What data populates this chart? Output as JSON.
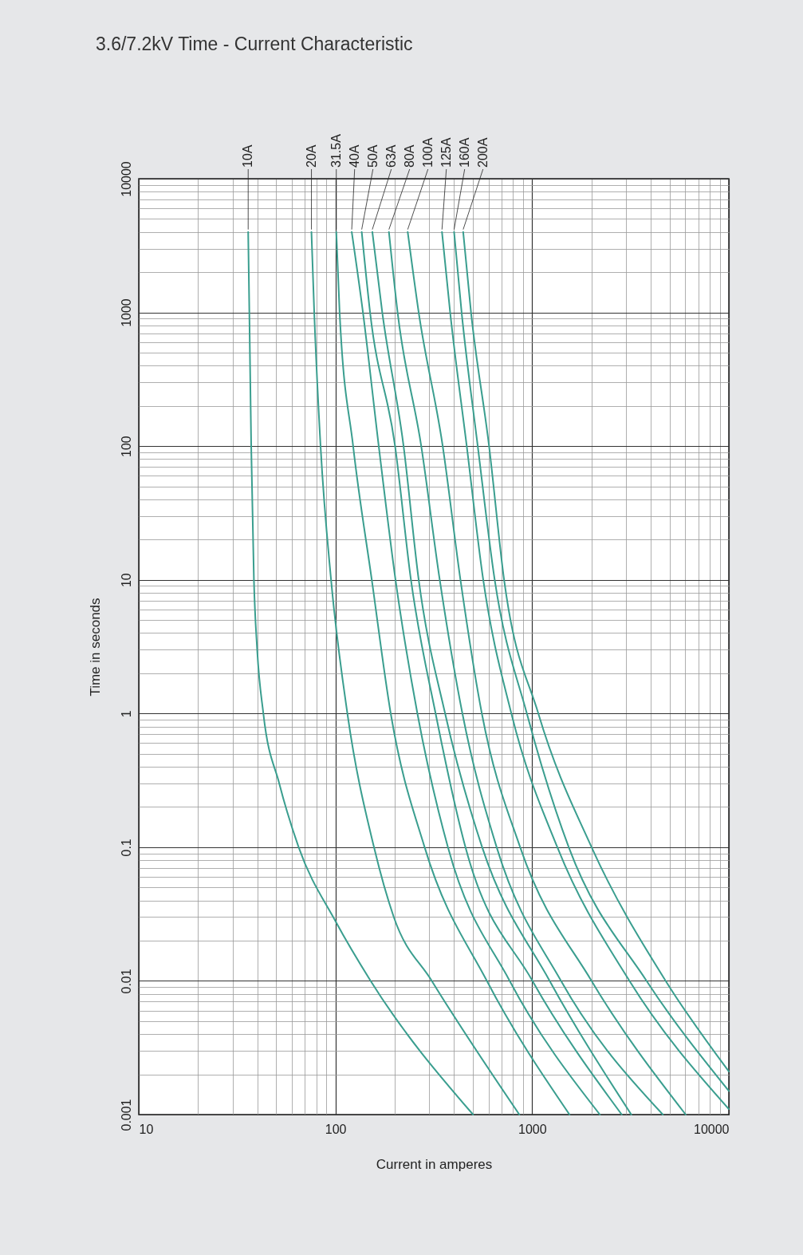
{
  "chart_data": {
    "type": "line",
    "title": "3.6/7.2kV Time - Current Characteristic",
    "xlabel": "Current in amperes",
    "ylabel": "Time in seconds",
    "log": "xy",
    "grid": true,
    "xlim": [
      10,
      10000
    ],
    "ylim": [
      0.001,
      10000
    ],
    "xticks": [
      10,
      {
        "value": 20,
        "label": null
      },
      {
        "value": 30,
        "label": null
      },
      {
        "value": 40,
        "label": null
      },
      {
        "value": 50,
        "label": null
      },
      {
        "value": 60,
        "label": null
      },
      {
        "value": 70,
        "label": null
      },
      {
        "value": 80,
        "label": null
      },
      {
        "value": 90,
        "label": null
      },
      100,
      {
        "value": 200,
        "label": null
      },
      {
        "value": 300,
        "label": null
      },
      {
        "value": 400,
        "label": null
      },
      {
        "value": 500,
        "label": null
      },
      {
        "value": 600,
        "label": null
      },
      {
        "value": 700,
        "label": null
      },
      {
        "value": 800,
        "label": null
      },
      {
        "value": 900,
        "label": null
      },
      1000,
      {
        "value": 2000,
        "label": null
      },
      {
        "value": 3000,
        "label": null
      },
      {
        "value": 4000,
        "label": null
      },
      {
        "value": 5000,
        "label": null
      },
      {
        "value": 6000,
        "label": null
      },
      {
        "value": 7000,
        "label": null
      },
      {
        "value": 8000,
        "label": null
      },
      {
        "value": 9000,
        "label": null
      },
      10000
    ],
    "yticks": [
      0.001,
      {
        "value": 0.002,
        "label": null
      },
      {
        "value": 0.003,
        "label": null
      },
      {
        "value": 0.004,
        "label": null
      },
      {
        "value": 0.005,
        "label": null
      },
      {
        "value": 0.006,
        "label": null
      },
      {
        "value": 0.007,
        "label": null
      },
      {
        "value": 0.008,
        "label": null
      },
      {
        "value": 0.009,
        "label": null
      },
      0.01,
      {
        "value": 0.02,
        "label": null
      },
      {
        "value": 0.03,
        "label": null
      },
      {
        "value": 0.04,
        "label": null
      },
      {
        "value": 0.05,
        "label": null
      },
      {
        "value": 0.06,
        "label": null
      },
      {
        "value": 0.07,
        "label": null
      },
      {
        "value": 0.08,
        "label": null
      },
      {
        "value": 0.09,
        "label": null
      },
      0.1,
      {
        "value": 0.2,
        "label": null
      },
      {
        "value": 0.3,
        "label": null
      },
      {
        "value": 0.4,
        "label": null
      },
      {
        "value": 0.5,
        "label": null
      },
      {
        "value": 0.6,
        "label": null
      },
      {
        "value": 0.7,
        "label": null
      },
      {
        "value": 0.8,
        "label": null
      },
      {
        "value": 0.9,
        "label": null
      },
      1,
      {
        "value": 2,
        "label": null
      },
      {
        "value": 3,
        "label": null
      },
      {
        "value": 4,
        "label": null
      },
      {
        "value": 5,
        "label": null
      },
      {
        "value": 6,
        "label": null
      },
      {
        "value": 7,
        "label": null
      },
      {
        "value": 8,
        "label": null
      },
      {
        "value": 9,
        "label": null
      },
      10,
      {
        "value": 20,
        "label": null
      },
      {
        "value": 30,
        "label": null
      },
      {
        "value": 40,
        "label": null
      },
      {
        "value": 50,
        "label": null
      },
      {
        "value": 60,
        "label": null
      },
      {
        "value": 70,
        "label": null
      },
      {
        "value": 80,
        "label": null
      },
      {
        "value": 90,
        "label": null
      },
      100,
      {
        "value": 200,
        "label": null
      },
      {
        "value": 300,
        "label": null
      },
      {
        "value": 400,
        "label": null
      },
      {
        "value": 500,
        "label": null
      },
      {
        "value": 600,
        "label": null
      },
      {
        "value": 700,
        "label": null
      },
      {
        "value": 800,
        "label": null
      },
      {
        "value": 900,
        "label": null
      },
      1000,
      {
        "value": 2000,
        "label": null
      },
      {
        "value": 3000,
        "label": null
      },
      {
        "value": 4000,
        "label": null
      },
      {
        "value": 5000,
        "label": null
      },
      {
        "value": 6000,
        "label": null
      },
      {
        "value": 7000,
        "label": null
      },
      {
        "value": 8000,
        "label": null
      },
      {
        "value": 9000,
        "label": null
      },
      10000
    ],
    "series": [
      {
        "name": "10A",
        "color": "#3a9e8f",
        "x": [
          36,
          36.5,
          37.3,
          38.5,
          40,
          43,
          51.8,
          65,
          100,
          151,
          501
        ],
        "values": [
          4000,
          1000,
          100,
          10,
          3,
          1,
          0.3,
          0.1,
          0.028,
          0.01,
          0.001
        ]
      },
      {
        "name": "20A",
        "color": "#3a9e8f",
        "x": [
          75.5,
          78,
          84,
          95,
          115,
          157,
          198,
          309,
          861
        ],
        "values": [
          4000,
          1000,
          100,
          10,
          1,
          0.1,
          0.03,
          0.01,
          0.001
        ]
      },
      {
        "name": "31.5A",
        "color": "#3a9e8f",
        "x": [
          101,
          105,
          123,
          153,
          191,
          284,
          589,
          1549
        ],
        "values": [
          4000,
          1000,
          100,
          10,
          1,
          0.1,
          0.01,
          0.001
        ]
      },
      {
        "name": "40A",
        "color": "#3a9e8f",
        "x": [
          121,
          138,
          166,
          202,
          261,
          373,
          769,
          2210
        ],
        "values": [
          4000,
          1000,
          100,
          10,
          1,
          0.1,
          0.01,
          0.001
        ]
      },
      {
        "name": "50A",
        "color": "#3a9e8f",
        "x": [
          136,
          150,
          201,
          242,
          323,
          458,
          1004,
          2855
        ],
        "values": [
          4000,
          1000,
          100,
          10,
          1,
          0.1,
          0.01,
          0.001
        ]
      },
      {
        "name": "63A",
        "color": "#3a9e8f",
        "x": [
          154,
          173,
          222,
          265,
          361,
          557,
          1228,
          3193
        ],
        "values": [
          4000,
          1000,
          100,
          10,
          1,
          0.1,
          0.01,
          0.001
        ]
      },
      {
        "name": "80A",
        "color": "#3a9e8f",
        "x": [
          187,
          207,
          273,
          339,
          442,
          660,
          1403,
          4620
        ],
        "values": [
          4000,
          1000,
          100,
          10,
          1,
          0.1,
          0.01,
          0.001
        ]
      },
      {
        "name": "100A",
        "color": "#3a9e8f",
        "x": [
          233,
          265,
          351,
          432,
          555,
          869,
          2005,
          6035
        ],
        "values": [
          4000,
          1000,
          100,
          10,
          1,
          0.1,
          0.01,
          0.001
        ]
      },
      {
        "name": "125A",
        "color": "#3a9e8f",
        "x": [
          348,
          383,
          465,
          564,
          784,
          1343,
          3126,
          10000
        ],
        "values": [
          4000,
          1000,
          100,
          10,
          1,
          0.1,
          0.01,
          0.0011
        ]
      },
      {
        "name": "160A",
        "color": "#3a9e8f",
        "x": [
          401,
          438,
          529,
          645,
          940,
          1535,
          3818,
          10000
        ],
        "values": [
          4000,
          1000,
          100,
          10,
          1,
          0.1,
          0.01,
          0.0015
        ]
      },
      {
        "name": "200A",
        "color": "#3a9e8f",
        "x": [
          446,
          489,
          604,
          720,
          1075,
          2005,
          4773,
          10000
        ],
        "values": [
          4000,
          1000,
          100,
          10,
          1,
          0.1,
          0.01,
          0.0021
        ]
      }
    ]
  }
}
